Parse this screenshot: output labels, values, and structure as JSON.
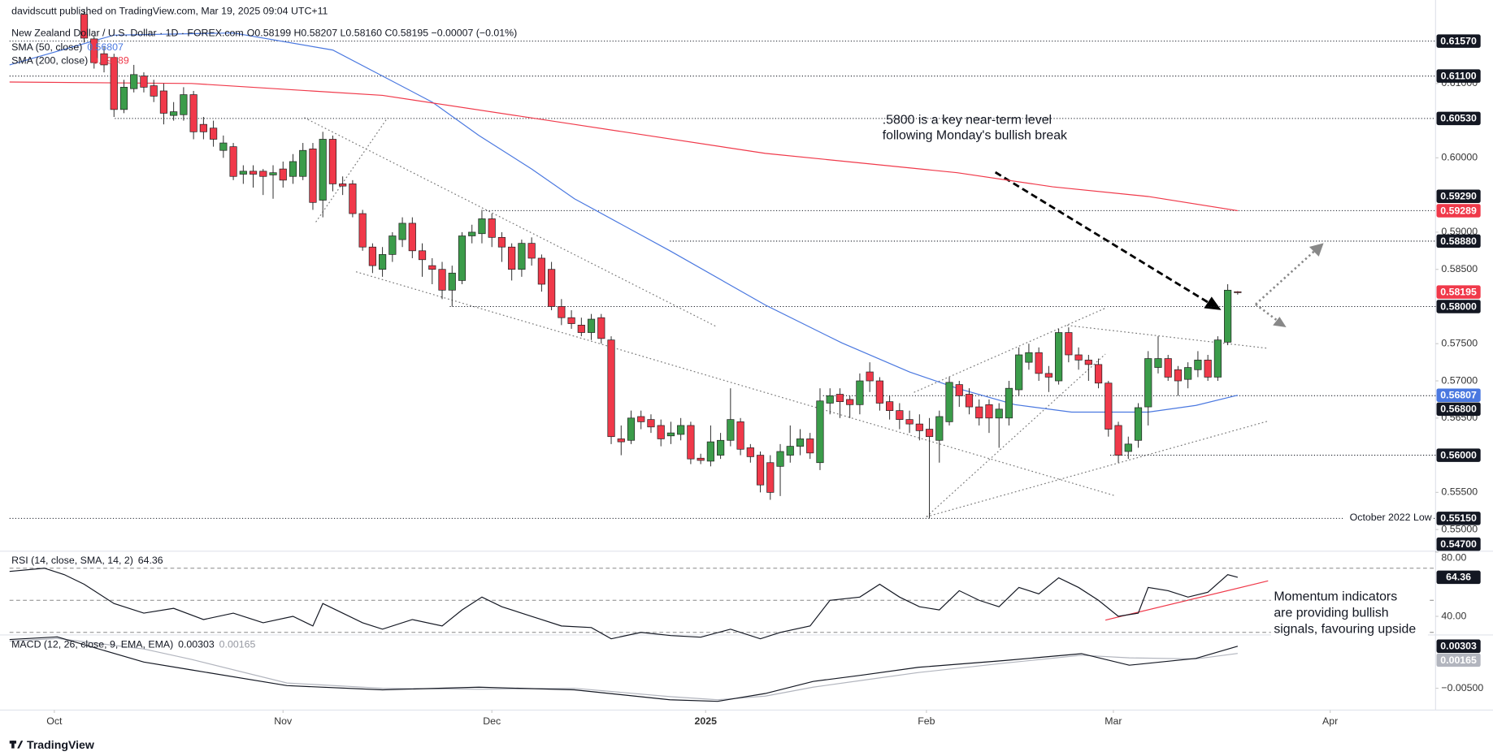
{
  "header": {
    "publisher": "davidscutt published on TradingView.com, Mar 19, 2025 09:04 UTC+11",
    "symbol": "New Zealand Dollar / U.S. Dollar · 1D · FOREX.com",
    "ohlc": "O0.58199 H0.58207 L0.58160 C0.58195 −0.00007 (−0.01%)"
  },
  "footer": {
    "brand": "TradingView"
  },
  "annotations": [
    ".5800 is a key near-term level",
    "following Monday's bullish break",
    "Momentum indicators",
    "are providing bullish",
    "signals, favouring upside",
    "October 2022 Low"
  ],
  "chart_data": [
    {
      "type": "candlestick",
      "up_color": "#3b9c4a",
      "down_color": "#f0394a",
      "xlim": [
        -7.5,
        135.9
      ],
      "ylim": [
        0.5471,
        0.6202
      ],
      "xticks": [
        {
          "value": -3,
          "label": "Oct"
        },
        {
          "value": 20,
          "label": "Nov"
        },
        {
          "value": 41,
          "label": "Dec"
        },
        {
          "value": 62.5,
          "label": "2025"
        },
        {
          "value": 84.7,
          "label": "Feb"
        },
        {
          "value": 103.5,
          "label": "Mar"
        },
        {
          "value": 125.3,
          "label": "Apr"
        }
      ],
      "yticks": [
        {
          "value": 0.61,
          "label": "0.61000"
        },
        {
          "value": 0.6,
          "label": "0.60000"
        },
        {
          "value": 0.59,
          "label": "0.59000"
        },
        {
          "value": 0.585,
          "label": "0.58500"
        },
        {
          "value": 0.575,
          "label": "0.57500"
        },
        {
          "value": 0.57,
          "label": "0.57000"
        },
        {
          "value": 0.565,
          "label": "0.56500"
        },
        {
          "value": 0.555,
          "label": "0.55500"
        },
        {
          "value": 0.55,
          "label": "0.55000"
        }
      ],
      "levels": [
        {
          "value": 0.6157,
          "label": "0.61570"
        },
        {
          "value": 0.611,
          "label": "0.61100"
        },
        {
          "value": 0.6053,
          "label": "0.60530"
        },
        {
          "value": 0.5929,
          "label": "0.59290"
        },
        {
          "value": 0.5888,
          "label": "0.58880"
        },
        {
          "value": 0.58,
          "label": "0.58000"
        },
        {
          "value": 0.568,
          "label": "0.56800"
        },
        {
          "value": 0.56,
          "label": "0.56000"
        },
        {
          "value": 0.5515,
          "label": "0.55150"
        },
        {
          "value": 0.547,
          "label": "0.54700"
        }
      ],
      "series": [
        {
          "name": "SMA (50, close)",
          "color": "#4a78e0",
          "x": [
            -7.5,
            3,
            15,
            25,
            30,
            35,
            39.7,
            45,
            49.3,
            58.9,
            68.5,
            76.2,
            83,
            87.8,
            93.6,
            99.3,
            107,
            111.8,
            116
          ],
          "values": [
            0.6125,
            0.6165,
            0.6168,
            0.6145,
            0.611,
            0.6075,
            0.603,
            0.5985,
            0.5945,
            0.5875,
            0.5802,
            0.5751,
            0.5712,
            0.569,
            0.5668,
            0.5658,
            0.5658,
            0.5667,
            0.56807
          ]
        },
        {
          "name": "SMA (200, close)",
          "color": "#f0394a",
          "x": [
            -7.5,
            10.8,
            30,
            49.3,
            68.5,
            87.8,
            97.4,
            107,
            116
          ],
          "values": [
            0.6102,
            0.61,
            0.6084,
            0.6045,
            0.6006,
            0.598,
            0.5961,
            0.5948,
            0.59289
          ]
        }
      ],
      "ohlc": [
        [
          0.6193,
          0.62,
          0.6155,
          0.6161
        ],
        [
          0.616,
          0.6165,
          0.612,
          0.6128
        ],
        [
          0.614,
          0.615,
          0.6115,
          0.6125
        ],
        [
          0.6135,
          0.614,
          0.6055,
          0.6065
        ],
        [
          0.6065,
          0.6105,
          0.606,
          0.6095
        ],
        [
          0.6093,
          0.6125,
          0.6088,
          0.6112
        ],
        [
          0.611,
          0.6115,
          0.6088,
          0.6095
        ],
        [
          0.6097,
          0.6105,
          0.6075,
          0.6083
        ],
        [
          0.609,
          0.61,
          0.6045,
          0.606
        ],
        [
          0.6057,
          0.6075,
          0.605,
          0.6062
        ],
        [
          0.6058,
          0.6095,
          0.605,
          0.6085
        ],
        [
          0.6085,
          0.609,
          0.6025,
          0.6035
        ],
        [
          0.6045,
          0.6055,
          0.6025,
          0.6035
        ],
        [
          0.604,
          0.605,
          0.6015,
          0.6025
        ],
        [
          0.601,
          0.603,
          0.6,
          0.602
        ],
        [
          0.6015,
          0.602,
          0.597,
          0.5975
        ],
        [
          0.5978,
          0.599,
          0.5965,
          0.5982
        ],
        [
          0.5982,
          0.599,
          0.596,
          0.5978
        ],
        [
          0.5982,
          0.5985,
          0.595,
          0.5975
        ],
        [
          0.5977,
          0.599,
          0.5945,
          0.598
        ],
        [
          0.5985,
          0.5995,
          0.596,
          0.597
        ],
        [
          0.5975,
          0.6005,
          0.5965,
          0.5995
        ],
        [
          0.5975,
          0.602,
          0.597,
          0.601
        ],
        [
          0.6012,
          0.602,
          0.593,
          0.594
        ],
        [
          0.5943,
          0.6035,
          0.592,
          0.6025
        ],
        [
          0.6025,
          0.603,
          0.5955,
          0.5965
        ],
        [
          0.5965,
          0.5975,
          0.595,
          0.5962
        ],
        [
          0.5965,
          0.597,
          0.592,
          0.5925
        ],
        [
          0.5925,
          0.593,
          0.5875,
          0.588
        ],
        [
          0.588,
          0.5885,
          0.5845,
          0.5855
        ],
        [
          0.585,
          0.588,
          0.584,
          0.587
        ],
        [
          0.587,
          0.59,
          0.586,
          0.5895
        ],
        [
          0.589,
          0.592,
          0.588,
          0.5912
        ],
        [
          0.5912,
          0.592,
          0.5865,
          0.5875
        ],
        [
          0.5875,
          0.5885,
          0.584,
          0.5863
        ],
        [
          0.5855,
          0.5865,
          0.583,
          0.585
        ],
        [
          0.585,
          0.586,
          0.581,
          0.5822
        ],
        [
          0.5822,
          0.5855,
          0.58,
          0.5845
        ],
        [
          0.5835,
          0.59,
          0.583,
          0.5895
        ],
        [
          0.5895,
          0.591,
          0.5885,
          0.59
        ],
        [
          0.5898,
          0.593,
          0.5885,
          0.5918
        ],
        [
          0.5918,
          0.5925,
          0.588,
          0.5893
        ],
        [
          0.5893,
          0.59,
          0.586,
          0.588
        ],
        [
          0.588,
          0.5885,
          0.5835,
          0.585
        ],
        [
          0.585,
          0.589,
          0.584,
          0.5885
        ],
        [
          0.5885,
          0.5893,
          0.5855,
          0.5865
        ],
        [
          0.5865,
          0.587,
          0.582,
          0.583
        ],
        [
          0.585,
          0.586,
          0.5795,
          0.58
        ],
        [
          0.58,
          0.581,
          0.5775,
          0.5785
        ],
        [
          0.5785,
          0.5795,
          0.577,
          0.5777
        ],
        [
          0.5775,
          0.5785,
          0.576,
          0.5765
        ],
        [
          0.5765,
          0.579,
          0.5755,
          0.5783
        ],
        [
          0.5785,
          0.579,
          0.575,
          0.5757
        ],
        [
          0.5755,
          0.576,
          0.5615,
          0.5625
        ],
        [
          0.5622,
          0.564,
          0.56,
          0.5618
        ],
        [
          0.562,
          0.566,
          0.5615,
          0.565
        ],
        [
          0.5652,
          0.566,
          0.5635,
          0.5645
        ],
        [
          0.5648,
          0.5655,
          0.563,
          0.5638
        ],
        [
          0.564,
          0.5648,
          0.5612,
          0.5622
        ],
        [
          0.5626,
          0.5645,
          0.5615,
          0.563
        ],
        [
          0.5628,
          0.565,
          0.562,
          0.564
        ],
        [
          0.564,
          0.5645,
          0.5588,
          0.5595
        ],
        [
          0.5596,
          0.5602,
          0.5588,
          0.5593
        ],
        [
          0.5592,
          0.564,
          0.5585,
          0.5618
        ],
        [
          0.56,
          0.563,
          0.5595,
          0.562
        ],
        [
          0.562,
          0.569,
          0.5612,
          0.5648
        ],
        [
          0.5645,
          0.565,
          0.56,
          0.5608
        ],
        [
          0.561,
          0.5615,
          0.559,
          0.5598
        ],
        [
          0.56,
          0.5605,
          0.555,
          0.556
        ],
        [
          0.559,
          0.56,
          0.554,
          0.555
        ],
        [
          0.5585,
          0.5615,
          0.5545,
          0.5605
        ],
        [
          0.56,
          0.564,
          0.559,
          0.5612
        ],
        [
          0.5612,
          0.5635,
          0.56,
          0.5622
        ],
        [
          0.5622,
          0.563,
          0.5595,
          0.5603
        ],
        [
          0.559,
          0.569,
          0.558,
          0.5673
        ],
        [
          0.567,
          0.569,
          0.5655,
          0.568
        ],
        [
          0.5682,
          0.569,
          0.565,
          0.5672
        ],
        [
          0.5675,
          0.568,
          0.565,
          0.5668
        ],
        [
          0.5668,
          0.571,
          0.5655,
          0.57
        ],
        [
          0.5712,
          0.5725,
          0.5685,
          0.57
        ],
        [
          0.57,
          0.5705,
          0.566,
          0.567
        ],
        [
          0.5672,
          0.568,
          0.5648,
          0.566
        ],
        [
          0.566,
          0.567,
          0.5635,
          0.5648
        ],
        [
          0.5648,
          0.566,
          0.563,
          0.5642
        ],
        [
          0.5642,
          0.5655,
          0.562,
          0.5633
        ],
        [
          0.5635,
          0.565,
          0.5515,
          0.5625
        ],
        [
          0.562,
          0.566,
          0.559,
          0.5652
        ],
        [
          0.5645,
          0.5705,
          0.564,
          0.5698
        ],
        [
          0.5695,
          0.57,
          0.5665,
          0.568
        ],
        [
          0.5682,
          0.569,
          0.5655,
          0.5665
        ],
        [
          0.5665,
          0.5675,
          0.564,
          0.565
        ],
        [
          0.5668,
          0.5675,
          0.563,
          0.565
        ],
        [
          0.565,
          0.567,
          0.561,
          0.5662
        ],
        [
          0.565,
          0.57,
          0.564,
          0.569
        ],
        [
          0.5688,
          0.5745,
          0.568,
          0.5735
        ],
        [
          0.5725,
          0.575,
          0.5715,
          0.5738
        ],
        [
          0.5738,
          0.5745,
          0.57,
          0.571
        ],
        [
          0.571,
          0.572,
          0.5685,
          0.5705
        ],
        [
          0.57,
          0.577,
          0.5695,
          0.5765
        ],
        [
          0.5765,
          0.5772,
          0.5725,
          0.5735
        ],
        [
          0.5735,
          0.5745,
          0.5715,
          0.5728
        ],
        [
          0.5728,
          0.5735,
          0.57,
          0.5722
        ],
        [
          0.5722,
          0.573,
          0.569,
          0.5697
        ],
        [
          0.5697,
          0.57,
          0.5625,
          0.5635
        ],
        [
          0.564,
          0.5645,
          0.559,
          0.56
        ],
        [
          0.5605,
          0.5625,
          0.5595,
          0.5615
        ],
        [
          0.562,
          0.567,
          0.561,
          0.5664
        ],
        [
          0.5665,
          0.574,
          0.564,
          0.573
        ],
        [
          0.5718,
          0.576,
          0.571,
          0.573
        ],
        [
          0.573,
          0.5735,
          0.57,
          0.5705
        ],
        [
          0.5715,
          0.572,
          0.568,
          0.57
        ],
        [
          0.5702,
          0.5725,
          0.569,
          0.5718
        ],
        [
          0.5715,
          0.574,
          0.5705,
          0.5728
        ],
        [
          0.5728,
          0.5735,
          0.57,
          0.5705
        ],
        [
          0.5705,
          0.576,
          0.57,
          0.5755
        ],
        [
          0.5752,
          0.583,
          0.5748,
          0.5822
        ],
        [
          0.58199,
          0.58207,
          0.5816,
          0.58195
        ]
      ]
    },
    {
      "type": "line",
      "title": "RSI (14, close, SMA, 14, 2)",
      "color": "#131722",
      "ylim": [
        29,
        80
      ],
      "yticks": [
        {
          "value": 80,
          "label": "80.00"
        },
        {
          "value": 40,
          "label": "40.00"
        }
      ],
      "levels": [
        70,
        50,
        30
      ],
      "x": [
        -7.5,
        -4,
        -2,
        0,
        3,
        6,
        9,
        12,
        15,
        18,
        21,
        23,
        24,
        26,
        28,
        30,
        33,
        36,
        38,
        40,
        42,
        45,
        48,
        51,
        53,
        56,
        59,
        62,
        65,
        68,
        70,
        73,
        75,
        78,
        80,
        82,
        84,
        86,
        88,
        90,
        92,
        94,
        96,
        98,
        100,
        102,
        104,
        106,
        107,
        109,
        111,
        113,
        115,
        116
      ],
      "values": [
        68,
        70,
        66,
        60,
        48,
        42,
        45,
        38,
        42,
        36,
        40,
        34,
        48,
        42,
        36,
        32,
        38,
        34,
        44,
        52,
        46,
        40,
        34,
        33,
        26,
        30,
        28,
        27,
        32,
        26,
        30,
        34,
        50,
        52,
        60,
        52,
        46,
        44,
        56,
        50,
        46,
        58,
        54,
        64,
        58,
        50,
        40,
        42,
        58,
        56,
        52,
        55,
        66,
        64.36
      ]
    },
    {
      "type": "line",
      "title": "MACD (12, 26, close, 9, EMA, EMA)",
      "ylim": [
        -0.0088,
        0.0049
      ],
      "yticks": [
        {
          "value": -0.005,
          "label": "−0.00500"
        }
      ],
      "series": [
        {
          "color": "#131722",
          "x": [
            -7.5,
            -2.7,
            6,
            10.8,
            20.4,
            30,
            39.7,
            49.3,
            58.9,
            63.7,
            68.5,
            73.3,
            78.2,
            83.9,
            92.6,
            100.3,
            105.1,
            111.8,
            116
          ],
          "values": [
            0.0043,
            0.0048,
            0.0,
            -0.0015,
            -0.0045,
            -0.0053,
            -0.0048,
            -0.0053,
            -0.0072,
            -0.0075,
            -0.006,
            -0.0037,
            -0.0025,
            -0.001,
            0.0003,
            0.0016,
            -0.0006,
            0.0007,
            0.00303
          ]
        },
        {
          "color": "#b2b5be",
          "x": [
            -7.5,
            -2.7,
            6,
            10.8,
            20.4,
            30,
            39.7,
            49.3,
            58.9,
            63.7,
            68.5,
            73.3,
            78.2,
            83.9,
            92.6,
            100.3,
            105.1,
            111.8,
            116
          ],
          "values": [
            0.004,
            0.0045,
            0.0025,
            0.0005,
            -0.004,
            -0.005,
            -0.0052,
            -0.005,
            -0.0066,
            -0.0072,
            -0.0065,
            -0.0048,
            -0.0035,
            -0.002,
            -0.0002,
            0.0013,
            0.0008,
            0.0006,
            0.00165
          ]
        }
      ]
    }
  ]
}
